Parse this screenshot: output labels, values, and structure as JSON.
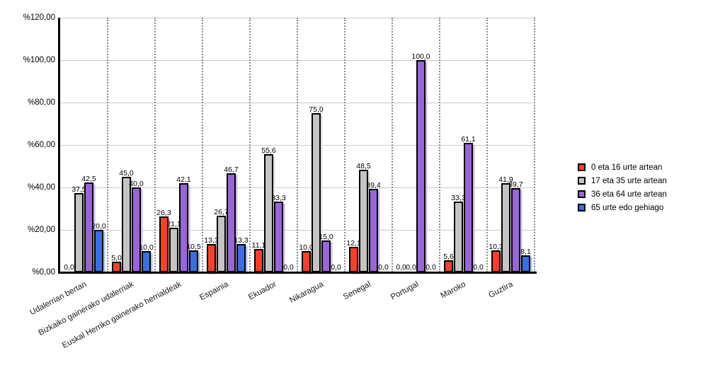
{
  "chart_data": {
    "type": "bar",
    "title": "",
    "categories": [
      "Udalerrian bertan",
      "Bizkaiko gainerako udalerriak",
      "Euskal Herriko gainerako herrialdeak",
      "Espainia",
      "Ekuador",
      "Nikaragua",
      "Senegal",
      "Portugal",
      "Maroko",
      "Guztira"
    ],
    "series": [
      {
        "name": "0 eta 16 urte artean",
        "color": "#f2422e",
        "shadow_color": "#f8aba3",
        "values": [
          0.0,
          5.0,
          26.3,
          13.3,
          11.1,
          10.0,
          12.1,
          0.0,
          5.6,
          10.3
        ]
      },
      {
        "name": "17 eta 35 urte artean",
        "color": "#c4c4c4",
        "shadow_color": "#e2e2e2",
        "values": [
          37.5,
          45.0,
          21.1,
          26.7,
          55.6,
          75.0,
          48.5,
          0.0,
          33.3,
          41.9
        ]
      },
      {
        "name": "36 eta 64 urte artean",
        "color": "#9966d6",
        "shadow_color": "#cfb9ee",
        "values": [
          42.5,
          40.0,
          42.1,
          46.7,
          33.3,
          15.0,
          39.4,
          100.0,
          61.1,
          39.7
        ]
      },
      {
        "name": "65 urte edo gehiago",
        "color": "#3b70d8",
        "shadow_color": "#a9c4f0",
        "values": [
          20.0,
          10.0,
          10.5,
          13.3,
          0.0,
          0.0,
          0.0,
          0.0,
          0.0,
          8.1
        ]
      }
    ],
    "value_labels": [
      [
        "0,0",
        "5,0",
        "26,3",
        "13,3",
        "11,1",
        "10,0",
        "12,1",
        "0,0",
        "5,6",
        "10,3"
      ],
      [
        "37,5",
        "45,0",
        "21,1",
        "26,7",
        "55,6",
        "75,0",
        "48,5",
        "0,0",
        "33,3",
        "41,9"
      ],
      [
        "42,5",
        "40,0",
        "42,1",
        "46,7",
        "33,3",
        "15,0",
        "39,4",
        "100,0",
        "61,1",
        "39,7"
      ],
      [
        "20,0",
        "10,0",
        "10,5",
        "13,3",
        "0,0",
        "0,0",
        "0,0",
        "0,0",
        "0,0",
        "8,1"
      ]
    ],
    "xlabel": "",
    "ylabel": "",
    "y_axis": {
      "min": 0,
      "max": 120,
      "step": 20,
      "tick_labels": [
        "%120,00",
        "%100,00",
        "%80,00",
        "%60,00",
        "%40,00",
        "%20,00",
        "%0,00"
      ]
    },
    "grid": {
      "horizontal_solid": true,
      "vertical_dotted": true
    },
    "legend_position": "right",
    "bar_border_color": "#000000",
    "axis_color": "#000000",
    "background_color": "#ffffff"
  }
}
